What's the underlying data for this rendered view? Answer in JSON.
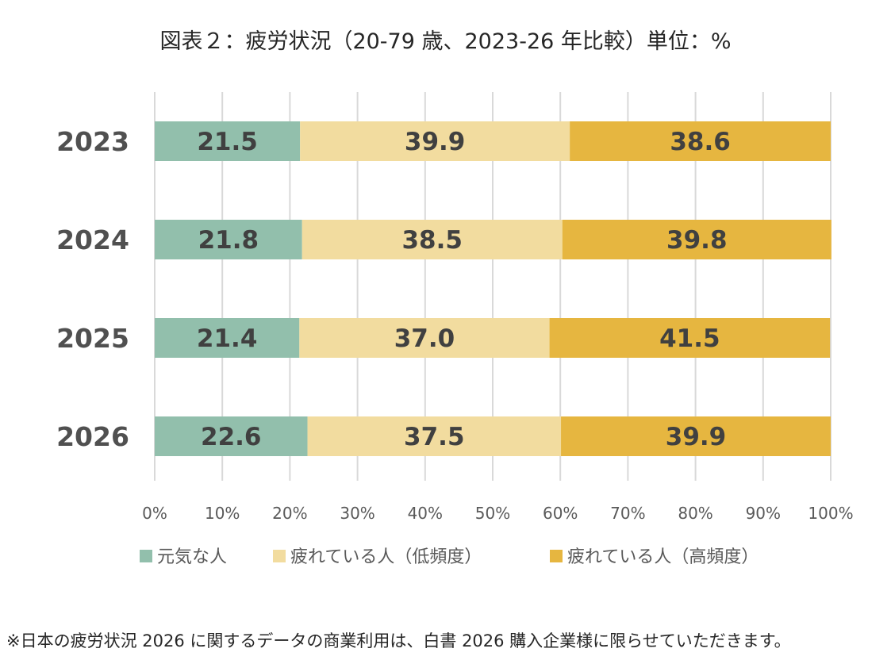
{
  "title": "図表２：疲労状況（20-79 歳、2023-26 年比較）単位：%",
  "footnote": "※日本の疲労状況 2026 に関するデータの商業利用は、白書 2026 購入企業様に限らせていただきます。",
  "chart_data": {
    "type": "bar",
    "orientation": "horizontal",
    "stacked": true,
    "categories": [
      "2023",
      "2024",
      "2025",
      "2026"
    ],
    "series": [
      {
        "name": "元気な人",
        "values": [
          21.5,
          21.8,
          21.4,
          22.6
        ],
        "color": "#92bfac"
      },
      {
        "name": "疲れている人（低頻度）",
        "values": [
          39.9,
          38.5,
          37.0,
          37.5
        ],
        "color": "#f2dc9f"
      },
      {
        "name": "疲れている人（高頻度）",
        "values": [
          38.6,
          39.8,
          41.5,
          39.9
        ],
        "color": "#e6b640"
      }
    ],
    "data_labels": [
      [
        "21.5",
        "39.9",
        "38.6"
      ],
      [
        "21.8",
        "38.5",
        "39.8"
      ],
      [
        "21.4",
        "37.0",
        "41.5"
      ],
      [
        "22.6",
        "37.5",
        "39.9"
      ]
    ],
    "x_ticks": [
      "0%",
      "10%",
      "20%",
      "30%",
      "40%",
      "50%",
      "60%",
      "70%",
      "80%",
      "90%",
      "100%"
    ],
    "xlim": [
      0,
      100
    ],
    "grid": "vertical",
    "legend_position": "bottom"
  }
}
